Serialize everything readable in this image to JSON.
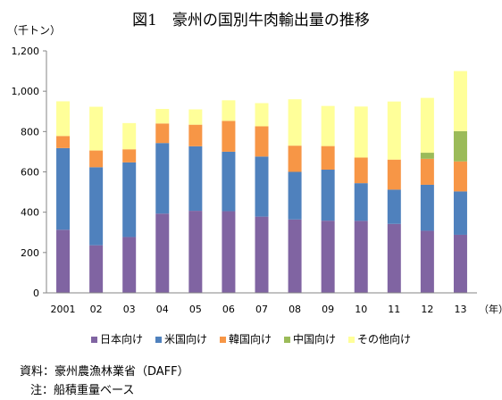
{
  "chart_data": {
    "type": "bar",
    "stacked": true,
    "title": "図1　豪州の国別牛肉輸出量の推移",
    "ylabel": "（千トン）",
    "xlabel": "（年）",
    "categories": [
      "2001",
      "02",
      "03",
      "04",
      "05",
      "06",
      "07",
      "08",
      "09",
      "10",
      "11",
      "12",
      "13"
    ],
    "ylim": [
      0,
      1200
    ],
    "yticks": [
      "0",
      "200",
      "400",
      "600",
      "800",
      "1,000",
      "1,200"
    ],
    "grid": false,
    "legend_position": "bottom",
    "series": [
      {
        "name": "日本向け",
        "color": "#8064a2",
        "values": [
          313,
          236,
          277,
          393,
          407,
          405,
          378,
          364,
          358,
          357,
          342,
          308,
          288
        ]
      },
      {
        "name": "米国向け",
        "color": "#4f81bd",
        "values": [
          405,
          387,
          370,
          350,
          320,
          295,
          298,
          236,
          253,
          187,
          170,
          228,
          215
        ]
      },
      {
        "name": "韓国向け",
        "color": "#f79646",
        "values": [
          60,
          83,
          65,
          97,
          107,
          153,
          150,
          130,
          117,
          127,
          149,
          129,
          149
        ]
      },
      {
        "name": "中国向け",
        "color": "#9bbb59",
        "values": [
          0,
          0,
          0,
          0,
          0,
          0,
          0,
          0,
          0,
          0,
          0,
          30,
          150
        ]
      },
      {
        "name": "その他向け",
        "color": "#ffff99",
        "values": [
          172,
          217,
          130,
          72,
          76,
          102,
          115,
          230,
          199,
          253,
          288,
          272,
          298
        ]
      }
    ]
  },
  "source": "資料：豪州農漁林業省（DAFF）",
  "note": "注：船積重量ベース"
}
